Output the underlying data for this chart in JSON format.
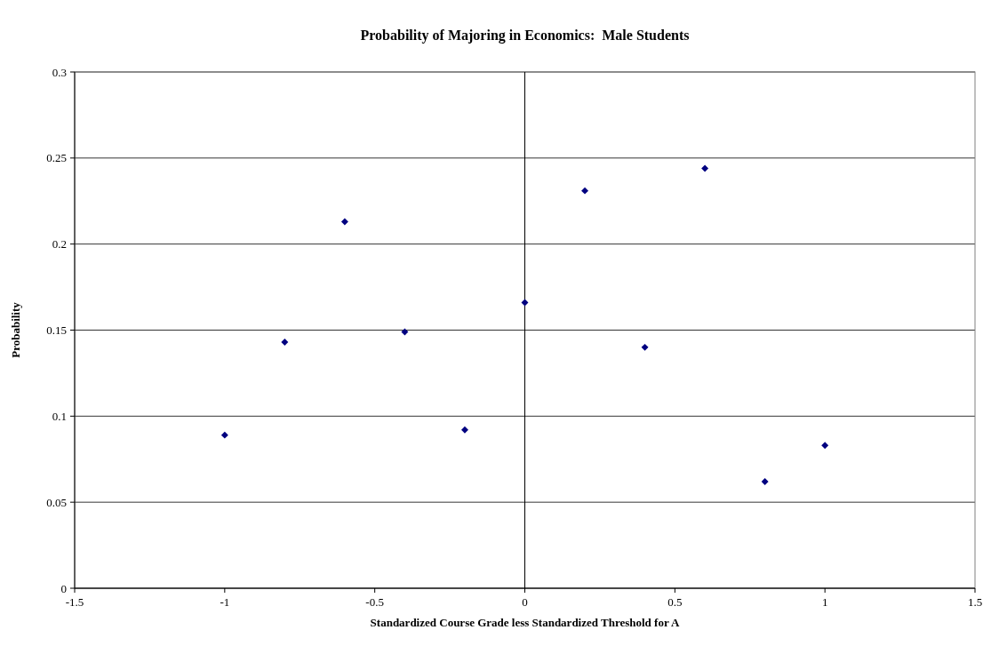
{
  "chart_data": {
    "type": "scatter",
    "title": "Probability of Majoring in Economics:  Male Students",
    "xlabel": "Standardized Course Grade less Standardized Threshold for A",
    "ylabel": "Probability",
    "x": [
      -1,
      -0.8,
      -0.6,
      -0.4,
      -0.2,
      0,
      0.2,
      0.4,
      0.6,
      0.8,
      1
    ],
    "series": [
      {
        "color": "#000080",
        "values": [
          0.089,
          0.143,
          0.213,
          0.149,
          0.092,
          0.166,
          0.231,
          0.14,
          0.244,
          0.062,
          0.083
        ]
      }
    ],
    "xlim": [
      -1.5,
      1.5
    ],
    "xticks": [
      -1.5,
      -1,
      -0.5,
      0,
      0.5,
      1,
      1.5
    ],
    "ylim": [
      0,
      0.3
    ],
    "yticks": [
      0,
      0.05,
      0.1,
      0.15,
      0.2,
      0.25,
      0.3
    ],
    "grid": "y",
    "marker": "diamond",
    "ref_lines": [
      {
        "axis": "x",
        "value": 0,
        "color": "#000000"
      }
    ]
  }
}
